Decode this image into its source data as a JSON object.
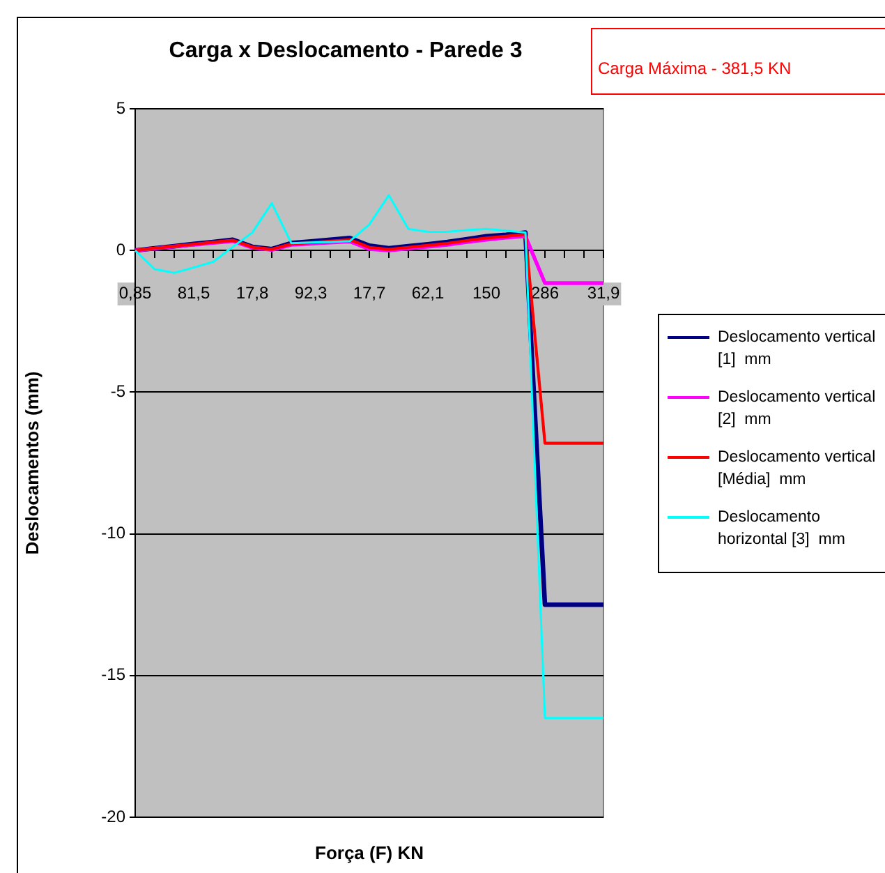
{
  "chart_data": {
    "type": "line",
    "title": "Carga x Deslocamento - Parede 3",
    "xlabel": "Força (F) KN",
    "ylabel": "Deslocamentos (mm)",
    "categories": [
      "0,85",
      null,
      null,
      "81,5",
      null,
      null,
      "17,8",
      null,
      null,
      "92,3",
      null,
      null,
      "17,7",
      null,
      null,
      "62,1",
      null,
      null,
      "150",
      null,
      null,
      "286",
      null,
      null,
      "31,9"
    ],
    "series": [
      {
        "name": "Deslocamento vertical [1]  mm",
        "color": "#000080",
        "values": [
          0,
          0.08,
          0.15,
          0.23,
          0.3,
          0.38,
          0.13,
          0.05,
          0.26,
          0.32,
          0.38,
          0.44,
          0.17,
          0.08,
          0.15,
          0.22,
          0.3,
          0.4,
          0.5,
          0.55,
          0.63,
          -12.5,
          -12.5,
          -12.5,
          -12.5
        ]
      },
      {
        "name": "Deslocamento vertical [2]  mm",
        "color": "#ff00ff",
        "values": [
          0,
          0.07,
          0.14,
          0.2,
          0.27,
          0.33,
          0.1,
          0.02,
          0.2,
          0.24,
          0.28,
          0.32,
          0.05,
          0,
          0.07,
          0.13,
          0.2,
          0.3,
          0.38,
          0.45,
          0.5,
          -1.15,
          -1.15,
          -1.15,
          -1.15
        ]
      },
      {
        "name": "Deslocamento vertical [Média]  mm",
        "color": "#ff0000",
        "values": [
          0,
          0.08,
          0.15,
          0.22,
          0.29,
          0.36,
          0.12,
          0.04,
          0.23,
          0.28,
          0.33,
          0.38,
          0.11,
          0.04,
          0.11,
          0.18,
          0.25,
          0.35,
          0.44,
          0.5,
          0.57,
          -6.8,
          -6.8,
          -6.8,
          -6.8
        ]
      },
      {
        "name": "Deslocamento horizontal [3]  mm",
        "color": "#00ffff",
        "values": [
          0,
          -0.66,
          -0.79,
          -0.6,
          -0.4,
          0.13,
          0.63,
          1.67,
          0.26,
          0.28,
          0.3,
          0.33,
          0.92,
          1.95,
          0.76,
          0.66,
          0.66,
          0.72,
          0.76,
          0.7,
          0.63,
          -16.5,
          -16.5,
          -16.5,
          -16.5
        ]
      }
    ],
    "ylim": [
      -20,
      5
    ],
    "yticks": [
      -20,
      -15,
      -10,
      -5,
      0,
      5
    ],
    "grid": "y",
    "legend": "right",
    "marker": "none",
    "annotations": [
      "Carga Máxima - 381,5 KN"
    ]
  }
}
